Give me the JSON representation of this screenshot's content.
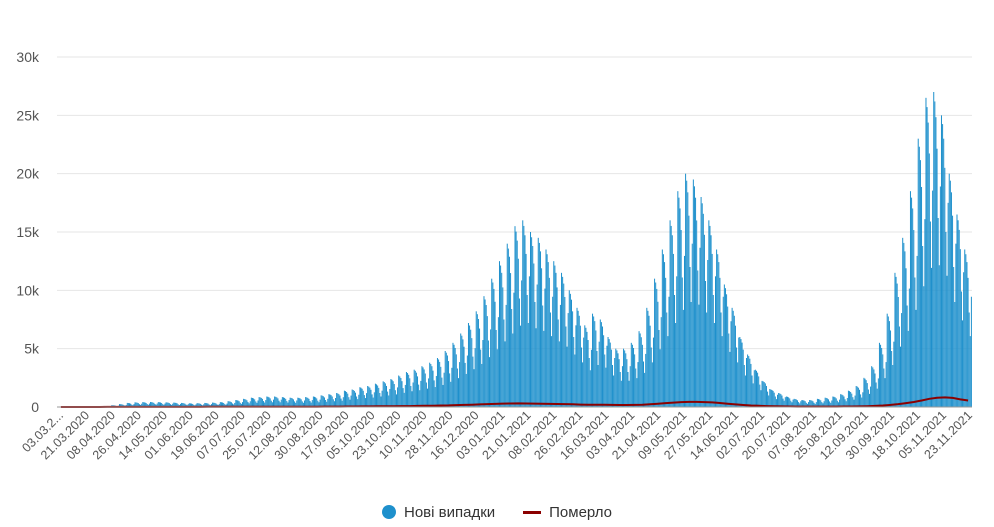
{
  "chart_data": {
    "type": "bar",
    "title": "",
    "xlabel": "",
    "ylabel": "",
    "ylim": [
      0,
      30000
    ],
    "y_ticks": [
      0,
      5000,
      10000,
      15000,
      20000,
      25000,
      30000
    ],
    "y_tick_labels": [
      "0",
      "5k",
      "10k",
      "15k",
      "20k",
      "25k",
      "30k"
    ],
    "x_tick_labels": [
      "03.03.2...",
      "21.03.2020",
      "08.04.2020",
      "26.04.2020",
      "14.05.2020",
      "01.06.2020",
      "19.06.2020",
      "07.07.2020",
      "25.07.2020",
      "12.08.2020",
      "30.08.2020",
      "17.09.2020",
      "05.10.2020",
      "23.10.2020",
      "10.11.2020",
      "28.11.2020",
      "16.12.2020",
      "03.01.2021",
      "21.01.2021",
      "08.02.2021",
      "26.02.2021",
      "16.03.2021",
      "03.04.2021",
      "21.04.2021",
      "09.05.2021",
      "27.05.2021",
      "14.06.2021",
      "02.07.2021",
      "20.07.2021",
      "07.08.2021",
      "25.08.2021",
      "12.09.2021",
      "30.09.2021",
      "18.10.2021",
      "05.11.2021",
      "23.11.2021"
    ],
    "x_start": "03.03.2020",
    "x_end": "28.11.2021",
    "grid": true,
    "legend_position": "bottom-center",
    "series": [
      {
        "name": "Нові випадки",
        "type": "bar",
        "color": "#1e90cc",
        "weekly_peaks": [
          1,
          1,
          2,
          5,
          10,
          30,
          90,
          150,
          250,
          350,
          400,
          420,
          430,
          420,
          400,
          380,
          350,
          320,
          330,
          350,
          380,
          420,
          500,
          600,
          700,
          800,
          850,
          900,
          900,
          850,
          800,
          800,
          850,
          900,
          1000,
          1100,
          1200,
          1400,
          1500,
          1700,
          1800,
          2000,
          2200,
          2400,
          2700,
          3000,
          3200,
          3500,
          3800,
          4200,
          4800,
          5500,
          6300,
          7200,
          8200,
          9500,
          11000,
          12500,
          14000,
          15500,
          16000,
          15000,
          14500,
          13500,
          12500,
          11500,
          10000,
          8500,
          7000,
          8000,
          7500,
          6000,
          5000,
          5000,
          5500,
          6500,
          8500,
          11000,
          13500,
          16000,
          18500,
          20000,
          19500,
          18000,
          16000,
          13500,
          10500,
          8500,
          6000,
          4500,
          3200,
          2200,
          1500,
          1200,
          900,
          700,
          600,
          600,
          700,
          800,
          900,
          1100,
          1400,
          1800,
          2500,
          3500,
          5500,
          8000,
          11500,
          14500,
          18500,
          23000,
          26500,
          27000,
          25000,
          20000,
          16500,
          13500
        ]
      },
      {
        "name": "Померло",
        "type": "line",
        "color": "#8b0000",
        "weekly_values": [
          0,
          0,
          0,
          1,
          2,
          3,
          5,
          8,
          10,
          12,
          12,
          12,
          12,
          11,
          10,
          10,
          10,
          10,
          12,
          14,
          16,
          18,
          20,
          22,
          24,
          26,
          26,
          26,
          26,
          25,
          24,
          24,
          25,
          27,
          30,
          33,
          36,
          40,
          45,
          50,
          55,
          60,
          65,
          70,
          75,
          80,
          90,
          100,
          110,
          125,
          140,
          160,
          180,
          200,
          220,
          250,
          270,
          290,
          300,
          310,
          300,
          290,
          280,
          270,
          260,
          250,
          230,
          210,
          190,
          200,
          190,
          180,
          170,
          170,
          180,
          200,
          240,
          280,
          330,
          380,
          420,
          440,
          440,
          420,
          390,
          340,
          280,
          220,
          170,
          130,
          100,
          80,
          60,
          50,
          40,
          35,
          30,
          30,
          30,
          32,
          35,
          40,
          45,
          55,
          70,
          90,
          130,
          180,
          250,
          330,
          430,
          560,
          700,
          800,
          820,
          780,
          650,
          560
        ]
      }
    ]
  }
}
